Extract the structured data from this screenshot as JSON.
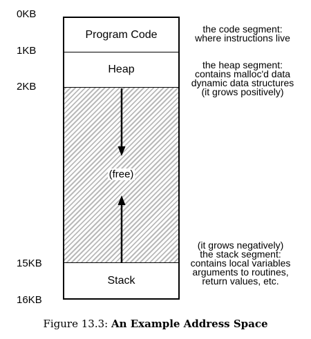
{
  "address_labels": [
    "0KB",
    "1KB",
    "2KB",
    "15KB",
    "16KB"
  ],
  "segments": {
    "code": "Program Code",
    "heap": "Heap",
    "free": "(free)",
    "stack": "Stack"
  },
  "notes": {
    "code": [
      "the code segment:",
      "where instructions live"
    ],
    "heap": [
      "the heap segment:",
      "contains malloc'd data",
      "dynamic data structures",
      "(it grows positively)"
    ],
    "stack": [
      "(it grows negatively)",
      "the stack segment:",
      "contains local variables",
      "arguments to routines,",
      "return values, etc."
    ]
  },
  "caption": {
    "prefix": "Figure 13.3: ",
    "title": "An Example Address Space"
  }
}
